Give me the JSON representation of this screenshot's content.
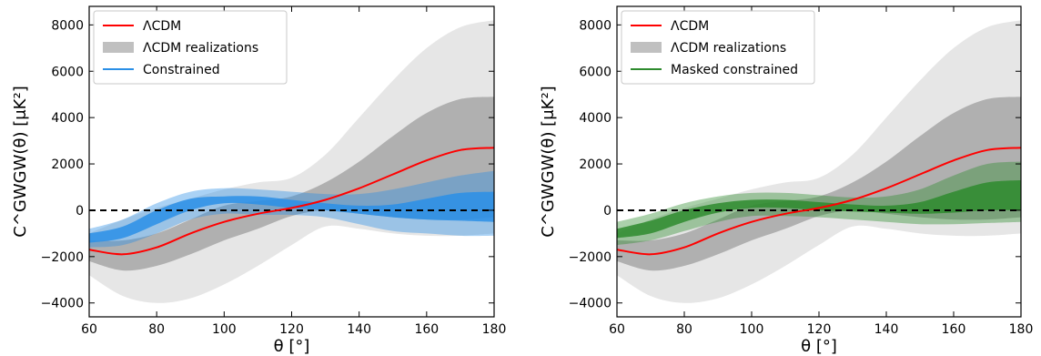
{
  "chart_data": [
    {
      "type": "area",
      "xlabel": "θ [°]",
      "ylabel": "C^GWGW(θ) [μK²]",
      "xlim": [
        60,
        180
      ],
      "ylim": [
        -4600,
        8800
      ],
      "xticks": [
        60,
        80,
        100,
        120,
        140,
        160,
        180
      ],
      "yticks": [
        -4000,
        -2000,
        0,
        2000,
        4000,
        6000,
        8000
      ],
      "grid": false,
      "legend_position": "top-left",
      "legend": [
        {
          "label": "ΛCDM",
          "kind": "line",
          "color": "#ff0000"
        },
        {
          "label": "ΛCDM realizations",
          "kind": "patch",
          "color": "#c0c0c0"
        },
        {
          "label": "Constrained",
          "kind": "line",
          "color": "#2a8fe6"
        }
      ],
      "x": [
        60,
        70,
        80,
        90,
        100,
        110,
        120,
        130,
        140,
        150,
        160,
        170,
        180
      ],
      "lcdm_mean": [
        -1700,
        -1900,
        -1600,
        -1000,
        -500,
        -150,
        100,
        450,
        950,
        1550,
        2150,
        2600,
        2700
      ],
      "realizations_1sigma_lower": [
        -2200,
        -2600,
        -2400,
        -1900,
        -1300,
        -800,
        -250,
        0,
        -150,
        -300,
        -400,
        -400,
        -300
      ],
      "realizations_1sigma_upper": [
        -1300,
        -1300,
        -1000,
        -400,
        200,
        400,
        600,
        1200,
        2100,
        3200,
        4200,
        4800,
        4900
      ],
      "realizations_2sigma_lower": [
        -2800,
        -3700,
        -4000,
        -3800,
        -3200,
        -2400,
        -1500,
        -700,
        -800,
        -1000,
        -1100,
        -1100,
        -1000
      ],
      "realizations_2sigma_upper": [
        -1000,
        -400,
        100,
        500,
        900,
        1200,
        1400,
        2400,
        4000,
        5600,
        7000,
        7900,
        8200
      ],
      "constrained_1sigma_lower": [
        -1400,
        -1200,
        -600,
        0,
        300,
        250,
        100,
        0,
        -150,
        -300,
        -400,
        -450,
        -500
      ],
      "constrained_1sigma_upper": [
        -1000,
        -700,
        0,
        500,
        600,
        600,
        450,
        300,
        200,
        250,
        500,
        750,
        800
      ],
      "constrained_2sigma_lower": [
        -1600,
        -1500,
        -1000,
        -400,
        -150,
        -200,
        -200,
        -300,
        -600,
        -900,
        -1000,
        -1100,
        -1100
      ],
      "constrained_2sigma_upper": [
        -800,
        -400,
        300,
        800,
        950,
        900,
        800,
        700,
        700,
        900,
        1200,
        1500,
        1700
      ],
      "reference_line": 0,
      "colors": {
        "lcdm": "#ff0000",
        "real_2sigma": "#e6e6e6",
        "real_1sigma": "#b0b0b0",
        "con_1sigma": "#2a8fe6",
        "con_2sigma": "#a9cbee"
      }
    },
    {
      "type": "area",
      "xlabel": "θ [°]",
      "ylabel": "C^GWGW(θ) [μK²]",
      "xlim": [
        60,
        180
      ],
      "ylim": [
        -4600,
        8800
      ],
      "xticks": [
        60,
        80,
        100,
        120,
        140,
        160,
        180
      ],
      "yticks": [
        -4000,
        -2000,
        0,
        2000,
        4000,
        6000,
        8000
      ],
      "grid": false,
      "legend_position": "top-left",
      "legend": [
        {
          "label": "ΛCDM",
          "kind": "line",
          "color": "#ff0000"
        },
        {
          "label": "ΛCDM realizations",
          "kind": "patch",
          "color": "#c0c0c0"
        },
        {
          "label": "Masked constrained",
          "kind": "line",
          "color": "#2e8b2e"
        }
      ],
      "x": [
        60,
        70,
        80,
        90,
        100,
        110,
        120,
        130,
        140,
        150,
        160,
        170,
        180
      ],
      "lcdm_mean": [
        -1700,
        -1900,
        -1600,
        -1000,
        -500,
        -150,
        100,
        450,
        950,
        1550,
        2150,
        2600,
        2700
      ],
      "realizations_1sigma_lower": [
        -2200,
        -2600,
        -2400,
        -1900,
        -1300,
        -800,
        -250,
        0,
        -150,
        -300,
        -400,
        -400,
        -300
      ],
      "realizations_1sigma_upper": [
        -1300,
        -1300,
        -1000,
        -400,
        200,
        400,
        600,
        1200,
        2100,
        3200,
        4200,
        4800,
        4900
      ],
      "realizations_2sigma_lower": [
        -2800,
        -3700,
        -4000,
        -3800,
        -3200,
        -2400,
        -1500,
        -700,
        -800,
        -1000,
        -1100,
        -1100,
        -1000
      ],
      "realizations_2sigma_upper": [
        -1000,
        -400,
        100,
        500,
        900,
        1200,
        1400,
        2400,
        4000,
        5600,
        7000,
        7900,
        8200
      ],
      "constrained_1sigma_lower": [
        -1200,
        -1000,
        -500,
        -100,
        100,
        100,
        0,
        -50,
        -100,
        -150,
        -100,
        0,
        0
      ],
      "constrained_1sigma_upper": [
        -800,
        -450,
        0,
        300,
        450,
        450,
        350,
        250,
        200,
        350,
        800,
        1200,
        1300
      ],
      "constrained_2sigma_lower": [
        -1500,
        -1300,
        -900,
        -500,
        -250,
        -250,
        -300,
        -400,
        -500,
        -600,
        -600,
        -550,
        -500
      ],
      "constrained_2sigma_upper": [
        -500,
        -150,
        300,
        600,
        750,
        750,
        650,
        550,
        600,
        900,
        1500,
        2000,
        2100
      ],
      "reference_line": 0,
      "colors": {
        "lcdm": "#ff0000",
        "real_2sigma": "#e6e6e6",
        "real_1sigma": "#b0b0b0",
        "con_1sigma": "#2e8b2e",
        "con_2sigma": "#a7cba7"
      }
    }
  ]
}
